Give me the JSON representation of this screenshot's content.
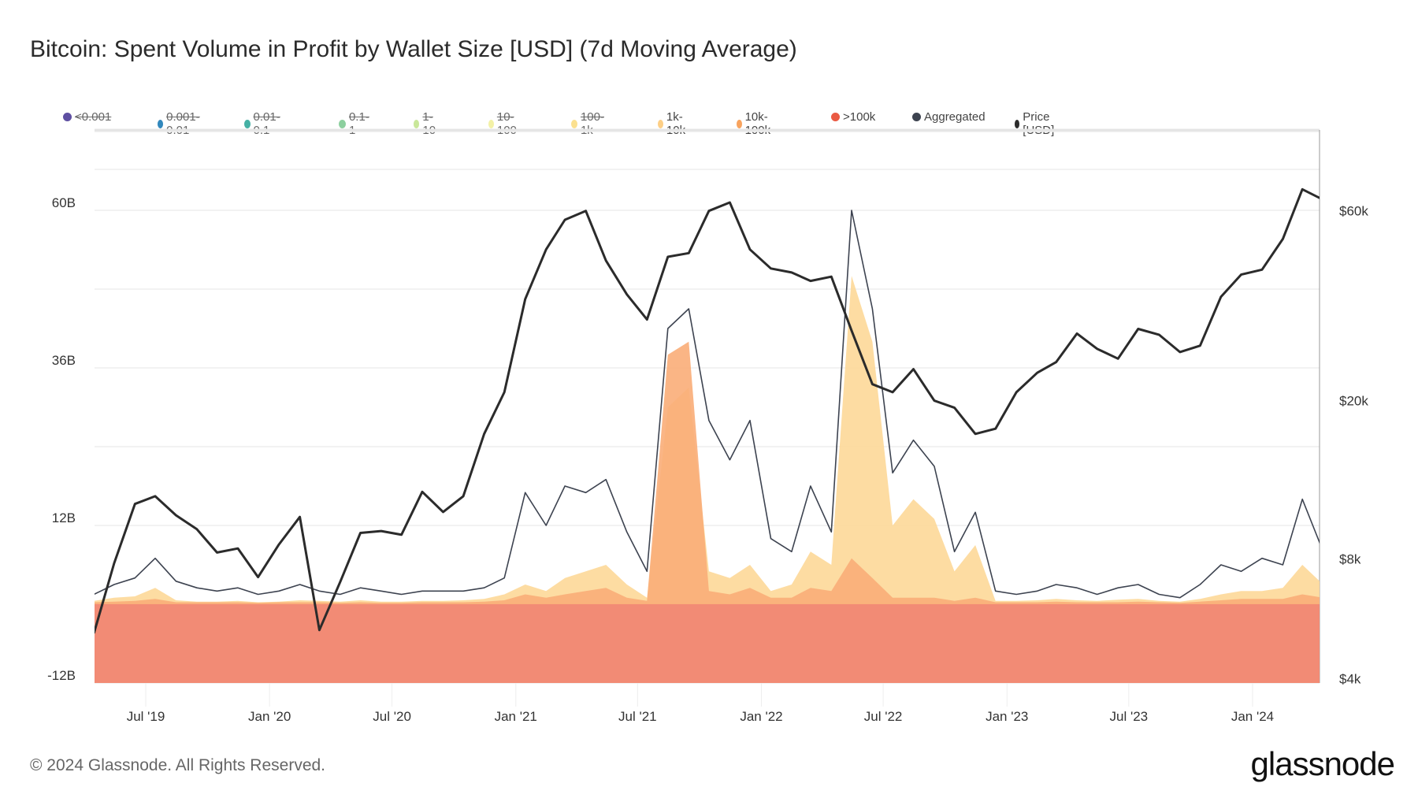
{
  "title": "Bitcoin: Spent Volume in Profit by Wallet Size [USD] (7d Moving Average)",
  "footer": "© 2024 Glassnode. All Rights Reserved.",
  "logo": "glassnode",
  "legend": [
    {
      "label": "<0.001",
      "color": "#5e4fa2",
      "enabled": false
    },
    {
      "label": "0.001-0.01",
      "color": "#3288bd",
      "enabled": false
    },
    {
      "label": "0.01-0.1",
      "color": "#45b0a4",
      "enabled": false
    },
    {
      "label": "0.1-1",
      "color": "#8ccf9e",
      "enabled": false
    },
    {
      "label": "1-10",
      "color": "#c9e79a",
      "enabled": false
    },
    {
      "label": "10-100",
      "color": "#f3f1a6",
      "enabled": false
    },
    {
      "label": "100-1k",
      "color": "#fbe08f",
      "enabled": false
    },
    {
      "label": "1k-10k",
      "color": "#fdcf86",
      "enabled": true
    },
    {
      "label": "10k-100k",
      "color": "#f8a35e",
      "enabled": true
    },
    {
      "label": ">100k",
      "color": "#ea5a43",
      "enabled": true
    },
    {
      "label": "Aggregated",
      "color": "#3d4350",
      "enabled": true
    },
    {
      "label": "Price [USD]",
      "color": "#2b2b2b",
      "enabled": true
    }
  ],
  "chart_data": {
    "type": "area",
    "title": "Bitcoin: Spent Volume in Profit by Wallet Size [USD] (7d Moving Average)",
    "grid": true,
    "legend_position": "top",
    "x_range": [
      "2019-04-15",
      "2024-04-15"
    ],
    "x_ticks": [
      {
        "date": "2019-07-01",
        "label": "Jul '19"
      },
      {
        "date": "2020-01-01",
        "label": "Jan '20"
      },
      {
        "date": "2020-07-01",
        "label": "Jul '20"
      },
      {
        "date": "2021-01-01",
        "label": "Jan '21"
      },
      {
        "date": "2021-07-01",
        "label": "Jul '21"
      },
      {
        "date": "2022-01-01",
        "label": "Jan '22"
      },
      {
        "date": "2022-07-01",
        "label": "Jul '22"
      },
      {
        "date": "2023-01-01",
        "label": "Jan '23"
      },
      {
        "date": "2023-07-01",
        "label": "Jul '23"
      },
      {
        "date": "2024-01-01",
        "label": "Jan '24"
      }
    ],
    "y_left": {
      "unit": "USD (billions)",
      "range": [
        -12,
        72
      ],
      "scale": "linear",
      "ticks": [
        {
          "value": 60,
          "label": "60B"
        },
        {
          "value": 36,
          "label": "36B"
        },
        {
          "value": 12,
          "label": "12B"
        },
        {
          "value": -12,
          "label": "-12B"
        }
      ]
    },
    "y_right": {
      "unit": "USD",
      "range": [
        3900,
        95000
      ],
      "scale": "log",
      "ticks": [
        {
          "value": 60000,
          "label": "$60k"
        },
        {
          "value": 20000,
          "label": "$20k"
        },
        {
          "value": 8000,
          "label": "$8k"
        },
        {
          "value": 4000,
          "label": "$4k"
        }
      ]
    },
    "x": [
      "2019-04-15",
      "2019-05-15",
      "2019-06-15",
      "2019-07-15",
      "2019-08-15",
      "2019-09-15",
      "2019-10-15",
      "2019-11-15",
      "2019-12-15",
      "2020-01-15",
      "2020-02-15",
      "2020-03-15",
      "2020-04-15",
      "2020-05-15",
      "2020-06-15",
      "2020-07-15",
      "2020-08-15",
      "2020-09-15",
      "2020-10-15",
      "2020-11-15",
      "2020-12-15",
      "2021-01-15",
      "2021-02-15",
      "2021-03-15",
      "2021-04-15",
      "2021-05-15",
      "2021-06-15",
      "2021-07-15",
      "2021-08-15",
      "2021-09-15",
      "2021-10-15",
      "2021-11-15",
      "2021-12-15",
      "2022-01-15",
      "2022-02-15",
      "2022-03-15",
      "2022-04-15",
      "2022-05-15",
      "2022-06-15",
      "2022-07-15",
      "2022-08-15",
      "2022-09-15",
      "2022-10-15",
      "2022-11-15",
      "2022-12-15",
      "2023-01-15",
      "2023-02-15",
      "2023-03-15",
      "2023-04-15",
      "2023-05-15",
      "2023-06-15",
      "2023-07-15",
      "2023-08-15",
      "2023-09-15",
      "2023-10-15",
      "2023-11-15",
      "2023-12-15",
      "2024-01-15",
      "2024-02-15",
      "2024-03-15",
      "2024-04-15"
    ],
    "series": [
      {
        "name": ">100k",
        "axis": "left",
        "kind": "area",
        "color": "#f28b75",
        "values": [
          0.2,
          0.2,
          0.2,
          0.2,
          0.2,
          0.2,
          0.2,
          0.2,
          0.2,
          0.2,
          0.2,
          0.2,
          0.2,
          0.2,
          0.2,
          0.2,
          0.2,
          0.2,
          0.2,
          0.2,
          0.2,
          0.2,
          0.2,
          0.2,
          0.2,
          0.2,
          0.2,
          0.2,
          0.2,
          0.2,
          0.2,
          0.2,
          0.2,
          0.2,
          0.2,
          0.2,
          0.2,
          0.2,
          0.2,
          0.2,
          0.2,
          0.2,
          0.2,
          0.2,
          0.2,
          0.2,
          0.2,
          0.2,
          0.2,
          0.2,
          0.2,
          0.2,
          0.2,
          0.2,
          0.2,
          0.2,
          0.2,
          0.2,
          0.2,
          0.2,
          0.2
        ]
      },
      {
        "name": "1k-10k",
        "axis": "left",
        "kind": "area",
        "color": "#fdd898",
        "values": [
          0.5,
          1,
          1.2,
          2.5,
          0.6,
          0.4,
          0.4,
          0.5,
          0.3,
          0.4,
          0.6,
          0.5,
          0.4,
          0.6,
          0.4,
          0.4,
          0.5,
          0.5,
          0.6,
          0.8,
          1.5,
          3,
          2,
          4,
          5,
          6,
          3,
          1,
          30,
          33,
          5,
          4,
          6,
          2,
          3,
          8,
          6,
          50,
          40,
          12,
          16,
          13,
          5,
          9,
          0.5,
          0.5,
          0.6,
          0.8,
          0.6,
          0.5,
          0.7,
          0.8,
          0.5,
          0.4,
          0.8,
          1.5,
          2,
          2,
          2.5,
          6,
          3
        ]
      },
      {
        "name": "10k-100k",
        "axis": "left",
        "kind": "area",
        "color": "#f9ad78",
        "values": [
          0.3,
          0.4,
          0.5,
          0.8,
          0.3,
          0.3,
          0.3,
          0.3,
          0.2,
          0.3,
          0.3,
          0.3,
          0.2,
          0.3,
          0.2,
          0.2,
          0.3,
          0.3,
          0.3,
          0.4,
          0.6,
          1.5,
          1,
          1.5,
          2,
          2.5,
          1,
          0.5,
          38,
          40,
          2,
          1.5,
          2.5,
          1,
          1,
          2.5,
          2,
          7,
          4,
          1,
          1,
          1,
          0.5,
          1,
          0.3,
          0.3,
          0.3,
          0.4,
          0.3,
          0.3,
          0.3,
          0.4,
          0.3,
          0.2,
          0.4,
          0.6,
          0.8,
          0.8,
          0.8,
          1.5,
          1
        ]
      },
      {
        "name": "Aggregated",
        "axis": "left",
        "kind": "line",
        "color": "#3d4350",
        "values": [
          1.5,
          3,
          4,
          7,
          3.5,
          2.5,
          2,
          2.5,
          1.5,
          2,
          3,
          2,
          1.5,
          2.5,
          2,
          1.5,
          2,
          2,
          2,
          2.5,
          4,
          17,
          12,
          18,
          17,
          19,
          11,
          5,
          42,
          45,
          28,
          22,
          28,
          10,
          8,
          18,
          11,
          60,
          45,
          20,
          25,
          21,
          8,
          14,
          2,
          1.5,
          2,
          3,
          2.5,
          1.5,
          2.5,
          3,
          1.5,
          1,
          3,
          6,
          5,
          7,
          6,
          16,
          8
        ]
      },
      {
        "name": "Price [USD]",
        "axis": "right",
        "kind": "line",
        "color": "#2b2b2b",
        "values": [
          5200,
          7800,
          11000,
          11500,
          10300,
          9500,
          8300,
          8500,
          7200,
          8700,
          10200,
          5300,
          7000,
          9300,
          9400,
          9200,
          11800,
          10500,
          11500,
          16500,
          21000,
          36000,
          48000,
          57000,
          60000,
          45000,
          37000,
          32000,
          46000,
          47000,
          60000,
          63000,
          48000,
          43000,
          42000,
          40000,
          41000,
          30000,
          22000,
          21000,
          24000,
          20000,
          19200,
          16500,
          17000,
          21000,
          23500,
          25000,
          29500,
          27000,
          25500,
          30300,
          29300,
          26500,
          27500,
          36500,
          41500,
          42700,
          51000,
          68000,
          64000
        ]
      }
    ]
  }
}
